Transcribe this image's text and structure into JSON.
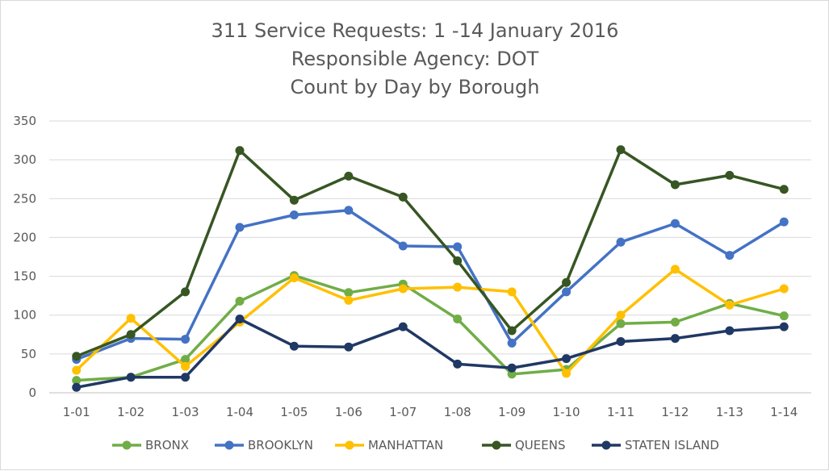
{
  "chart_data": {
    "type": "line",
    "title_lines": [
      "311 Service Requests: 1 -14 January 2016",
      "Responsible Agency: DOT",
      "Count by Day by Borough"
    ],
    "xlabel": "",
    "ylabel": "",
    "categories": [
      "1-01",
      "1-02",
      "1-03",
      "1-04",
      "1-05",
      "1-06",
      "1-07",
      "1-08",
      "1-09",
      "1-10",
      "1-11",
      "1-12",
      "1-13",
      "1-14"
    ],
    "ylim": [
      0,
      350
    ],
    "yticks": [
      0,
      50,
      100,
      150,
      200,
      250,
      300,
      350
    ],
    "grid": true,
    "legend_position": "bottom",
    "series": [
      {
        "name": "BRONX",
        "color": "#70ad47",
        "values": [
          16,
          20,
          43,
          118,
          151,
          129,
          140,
          95,
          24,
          30,
          89,
          91,
          115,
          99
        ]
      },
      {
        "name": "BROOKLYN",
        "color": "#4472c4",
        "values": [
          43,
          70,
          69,
          213,
          229,
          235,
          189,
          188,
          64,
          130,
          194,
          218,
          177,
          220
        ]
      },
      {
        "name": "MANHATTAN",
        "color": "#ffc000",
        "values": [
          29,
          96,
          34,
          91,
          148,
          119,
          134,
          136,
          130,
          25,
          100,
          159,
          113,
          134
        ]
      },
      {
        "name": "QUEENS",
        "color": "#375623",
        "values": [
          47,
          75,
          130,
          312,
          248,
          279,
          252,
          170,
          80,
          142,
          313,
          268,
          280,
          262
        ]
      },
      {
        "name": "STATEN ISLAND",
        "color": "#203864",
        "values": [
          7,
          20,
          20,
          95,
          60,
          59,
          85,
          37,
          32,
          44,
          66,
          70,
          80,
          85
        ]
      }
    ]
  }
}
